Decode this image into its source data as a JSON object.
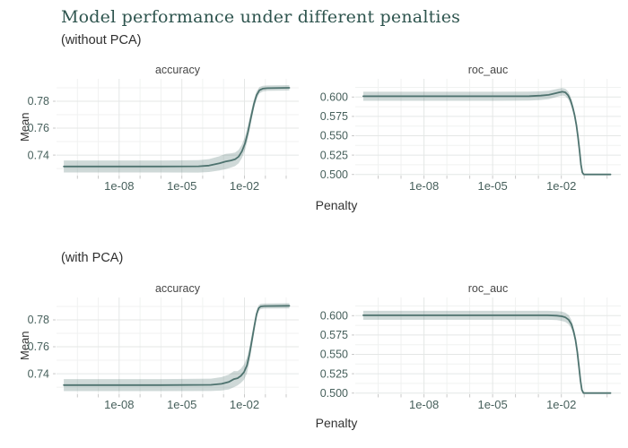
{
  "title": "Model performance under different penalties",
  "axis": {
    "x_label": "Penalty",
    "y_label": "Mean"
  },
  "rows": [
    {
      "subtitle": "(without PCA)"
    },
    {
      "subtitle": "(with PCA)"
    }
  ],
  "colors": {
    "title_text": "#2e544e",
    "subtitle_text": "#2f2f2f",
    "facet_text": "#474747",
    "axis_title_text": "#333333",
    "tick_text": "#47605c",
    "tick_mark": "#c9c9c9",
    "grid_major": "#e4e7e6",
    "grid_minor": "#f0f2f1",
    "line": "#4e736f",
    "ribbon": "rgba(78,115,110,0.27)",
    "background": "#ffffff"
  },
  "chart_data": [
    {
      "type": "line",
      "facet": "accuracy",
      "group": "without PCA",
      "xlabel": "Penalty",
      "ylabel": "Mean",
      "xscale": "log10",
      "x_range": [
        -11,
        0.6
      ],
      "y_range": [
        0.7247,
        0.7967
      ],
      "x_ticks": [
        {
          "e": -8,
          "label": "1e-08"
        },
        {
          "e": -5,
          "label": "1e-05"
        },
        {
          "e": -2,
          "label": "1e-02"
        }
      ],
      "y_ticks": [
        {
          "v": 0.74,
          "label": "0.74"
        },
        {
          "v": 0.76,
          "label": "0.76"
        },
        {
          "v": 0.78,
          "label": "0.78"
        }
      ],
      "x_minor": [
        -10,
        -9,
        -7,
        -6,
        -4,
        -3,
        -1,
        0
      ],
      "y_minor": [
        0.73,
        0.75,
        0.77,
        0.79
      ],
      "points": [
        [
          -10.65,
          0.7315,
          0.0045
        ],
        [
          -6,
          0.7315,
          0.0045
        ],
        [
          -4.2,
          0.7316,
          0.0046
        ],
        [
          -3.7,
          0.7322,
          0.0048
        ],
        [
          -3.2,
          0.7338,
          0.0053
        ],
        [
          -2.9,
          0.7352,
          0.0057
        ],
        [
          -2.65,
          0.736,
          0.0053
        ],
        [
          -2.45,
          0.7368,
          0.005
        ],
        [
          -2.28,
          0.7388,
          0.005
        ],
        [
          -2.12,
          0.7428,
          0.005
        ],
        [
          -1.97,
          0.7488,
          0.005
        ],
        [
          -1.83,
          0.7572,
          0.0048
        ],
        [
          -1.69,
          0.7678,
          0.0042
        ],
        [
          -1.55,
          0.7778,
          0.0035
        ],
        [
          -1.42,
          0.7846,
          0.0028
        ],
        [
          -1.28,
          0.7882,
          0.0024
        ],
        [
          -1.12,
          0.7894,
          0.0021
        ],
        [
          -0.9,
          0.7898,
          0.002
        ],
        [
          0.15,
          0.79,
          0.002
        ]
      ]
    },
    {
      "type": "line",
      "facet": "roc_auc",
      "group": "without PCA",
      "xlabel": "Penalty",
      "ylabel": "Mean",
      "xscale": "log10",
      "x_range": [
        -11,
        0.6
      ],
      "y_range": [
        0.4985,
        0.6235
      ],
      "x_ticks": [
        {
          "e": -8,
          "label": "1e-08"
        },
        {
          "e": -5,
          "label": "1e-05"
        },
        {
          "e": -2,
          "label": "1e-02"
        }
      ],
      "y_ticks": [
        {
          "v": 0.5,
          "label": "0.500"
        },
        {
          "v": 0.525,
          "label": "0.525"
        },
        {
          "v": 0.55,
          "label": "0.550"
        },
        {
          "v": 0.575,
          "label": "0.575"
        },
        {
          "v": 0.6,
          "label": "0.600"
        }
      ],
      "x_minor": [
        -10,
        -9,
        -7,
        -6,
        -4,
        -3,
        -1,
        0
      ],
      "y_minor": [
        0.5125,
        0.5375,
        0.5625,
        0.5875,
        0.6125
      ],
      "points": [
        [
          -10.65,
          0.601,
          0.0058
        ],
        [
          -5,
          0.601,
          0.0058
        ],
        [
          -3.4,
          0.6012,
          0.0058
        ],
        [
          -2.9,
          0.6018,
          0.0056
        ],
        [
          -2.55,
          0.6028,
          0.0054
        ],
        [
          -2.3,
          0.6045,
          0.0052
        ],
        [
          -2.1,
          0.606,
          0.005
        ],
        [
          -1.95,
          0.6068,
          0.0048
        ],
        [
          -1.82,
          0.606,
          0.0048
        ],
        [
          -1.7,
          0.6022,
          0.005
        ],
        [
          -1.6,
          0.596,
          0.005
        ],
        [
          -1.5,
          0.5865,
          0.0048
        ],
        [
          -1.42,
          0.5765,
          0.0042
        ],
        [
          -1.34,
          0.5635,
          0.0034
        ],
        [
          -1.27,
          0.548,
          0.0026
        ],
        [
          -1.2,
          0.5295,
          0.0018
        ],
        [
          -1.14,
          0.5125,
          0.001
        ],
        [
          -1.08,
          0.5025,
          0.0004
        ],
        [
          -1.02,
          0.5,
          0
        ],
        [
          0.15,
          0.5,
          0
        ]
      ]
    },
    {
      "type": "line",
      "facet": "accuracy",
      "group": "with PCA",
      "xlabel": "Penalty",
      "ylabel": "Mean",
      "xscale": "log10",
      "x_range": [
        -11,
        0.6
      ],
      "y_range": [
        0.7247,
        0.7967
      ],
      "x_ticks": [
        {
          "e": -8,
          "label": "1e-08"
        },
        {
          "e": -5,
          "label": "1e-05"
        },
        {
          "e": -2,
          "label": "1e-02"
        }
      ],
      "y_ticks": [
        {
          "v": 0.74,
          "label": "0.74"
        },
        {
          "v": 0.76,
          "label": "0.76"
        },
        {
          "v": 0.78,
          "label": "0.78"
        }
      ],
      "x_minor": [
        -10,
        -9,
        -7,
        -6,
        -4,
        -3,
        -1,
        0
      ],
      "y_minor": [
        0.73,
        0.75,
        0.77,
        0.79
      ],
      "points": [
        [
          -10.65,
          0.7315,
          0.0045
        ],
        [
          -6,
          0.7315,
          0.0045
        ],
        [
          -3.6,
          0.7317,
          0.0046
        ],
        [
          -3.1,
          0.7324,
          0.005
        ],
        [
          -2.75,
          0.7338,
          0.0055
        ],
        [
          -2.5,
          0.736,
          0.006
        ],
        [
          -2.33,
          0.7366,
          0.0053
        ],
        [
          -2.17,
          0.7384,
          0.0053
        ],
        [
          -2.02,
          0.7412,
          0.0056
        ],
        [
          -1.88,
          0.7462,
          0.0058
        ],
        [
          -1.76,
          0.7545,
          0.0055
        ],
        [
          -1.64,
          0.7652,
          0.0047
        ],
        [
          -1.52,
          0.776,
          0.0037
        ],
        [
          -1.42,
          0.7842,
          0.0028
        ],
        [
          -1.32,
          0.7887,
          0.0022
        ],
        [
          -1.22,
          0.79,
          0.002
        ],
        [
          -1.05,
          0.7903,
          0.0019
        ],
        [
          0.15,
          0.7905,
          0.0019
        ]
      ]
    },
    {
      "type": "line",
      "facet": "roc_auc",
      "group": "with PCA",
      "xlabel": "Penalty",
      "ylabel": "Mean",
      "xscale": "log10",
      "x_range": [
        -11,
        0.6
      ],
      "y_range": [
        0.4985,
        0.6235
      ],
      "x_ticks": [
        {
          "e": -8,
          "label": "1e-08"
        },
        {
          "e": -5,
          "label": "1e-05"
        },
        {
          "e": -2,
          "label": "1e-02"
        }
      ],
      "y_ticks": [
        {
          "v": 0.5,
          "label": "0.500"
        },
        {
          "v": 0.525,
          "label": "0.525"
        },
        {
          "v": 0.55,
          "label": "0.550"
        },
        {
          "v": 0.575,
          "label": "0.575"
        },
        {
          "v": 0.6,
          "label": "0.600"
        }
      ],
      "x_minor": [
        -10,
        -9,
        -7,
        -6,
        -4,
        -3,
        -1,
        0
      ],
      "y_minor": [
        0.5125,
        0.5375,
        0.5625,
        0.5875,
        0.6125
      ],
      "points": [
        [
          -10.65,
          0.6005,
          0.0058
        ],
        [
          -5,
          0.6005,
          0.0058
        ],
        [
          -2.6,
          0.6005,
          0.0058
        ],
        [
          -2.2,
          0.6,
          0.0058
        ],
        [
          -1.98,
          0.5992,
          0.006
        ],
        [
          -1.82,
          0.5978,
          0.006
        ],
        [
          -1.68,
          0.5948,
          0.006
        ],
        [
          -1.56,
          0.589,
          0.0057
        ],
        [
          -1.46,
          0.5795,
          0.005
        ],
        [
          -1.38,
          0.5685,
          0.0042
        ],
        [
          -1.3,
          0.553,
          0.0032
        ],
        [
          -1.23,
          0.5345,
          0.0022
        ],
        [
          -1.16,
          0.5155,
          0.0012
        ],
        [
          -1.1,
          0.504,
          0.0005
        ],
        [
          -1.03,
          0.5,
          0
        ],
        [
          0.15,
          0.5,
          0
        ]
      ]
    }
  ]
}
